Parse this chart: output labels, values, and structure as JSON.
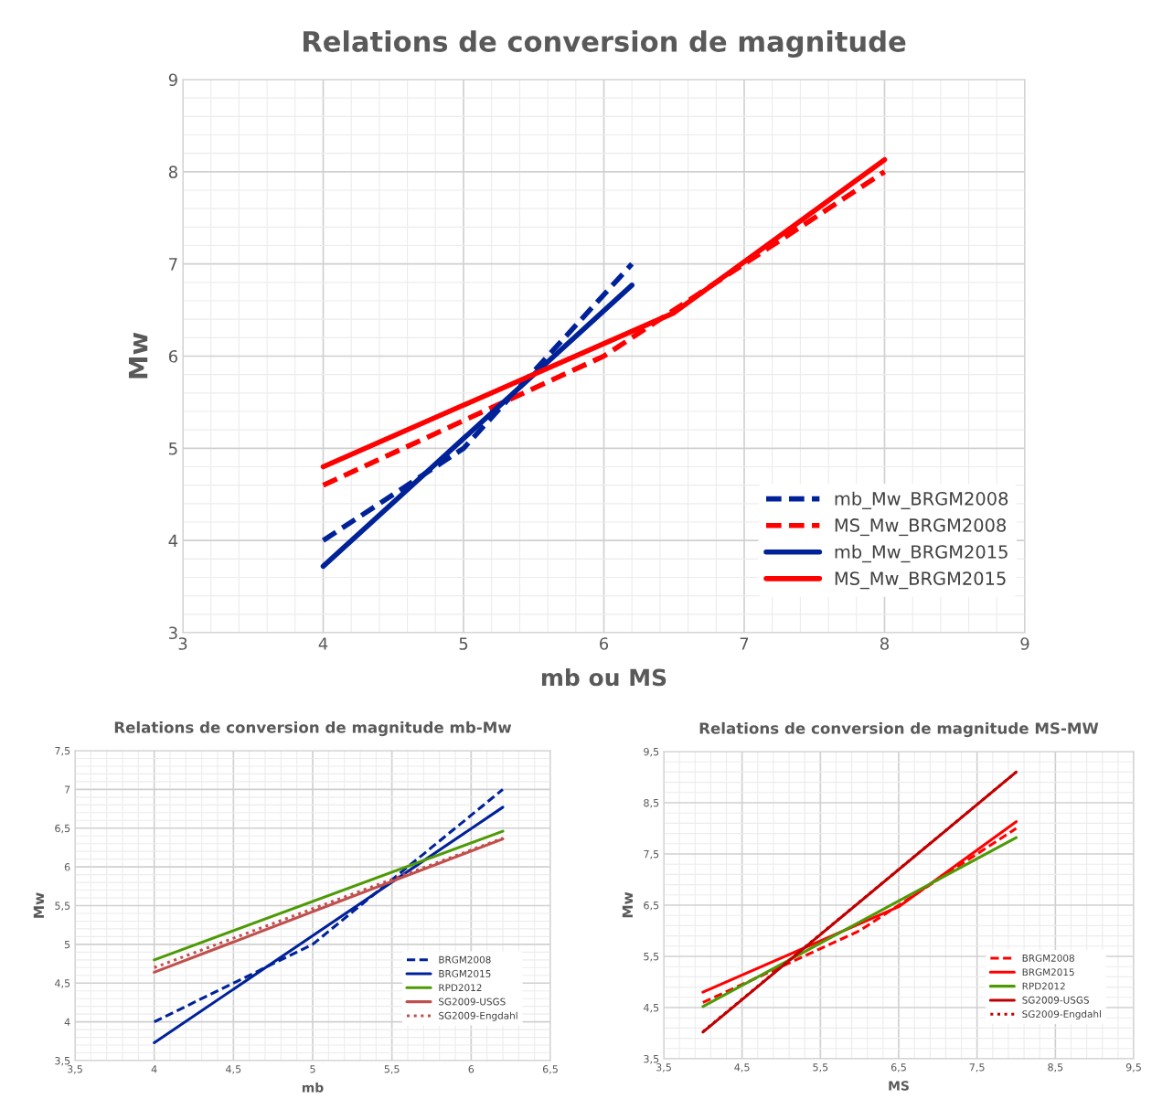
{
  "chart_data": [
    {
      "type": "line",
      "title": "Relations de conversion de magnitude",
      "xlabel": "mb ou MS",
      "ylabel": "Mw",
      "xlim": [
        3,
        9
      ],
      "ylim": [
        3,
        9
      ],
      "xticks": [
        3,
        4,
        5,
        6,
        7,
        8,
        9
      ],
      "yticks": [
        3,
        4,
        5,
        6,
        7,
        8,
        9
      ],
      "grid": true,
      "legend": "bottom right",
      "marker": "none",
      "series": [
        {
          "name": "mb_Mw_BRGM2008",
          "color": "#002299",
          "line_style": "dashed",
          "x": [
            4,
            5,
            6.2
          ],
          "values": [
            4,
            5,
            7.0
          ]
        },
        {
          "name": "MS_Mw_BRGM2008",
          "color": "#ff0000",
          "line_style": "dashed",
          "x": [
            4,
            6,
            8
          ],
          "values": [
            4.6,
            6.0,
            8.0
          ]
        },
        {
          "name": "mb_Mw_BRGM2015",
          "color": "#002299",
          "line_style": "solid",
          "x": [
            4,
            6.2
          ],
          "values": [
            3.72,
            6.77
          ]
        },
        {
          "name": "MS_Mw_BRGM2015",
          "color": "#ff0000",
          "line_style": "solid",
          "x": [
            4,
            6.5,
            8
          ],
          "values": [
            4.8,
            6.47,
            8.13
          ]
        }
      ]
    },
    {
      "type": "line",
      "title": "Relations de conversion de magnitude mb-Mw",
      "xlabel": "mb",
      "ylabel": "Mw",
      "xlim": [
        3.5,
        6.5
      ],
      "ylim": [
        3.5,
        7.5
      ],
      "xticks": [
        {
          "value": 3.5,
          "label": "3,5"
        },
        4,
        {
          "value": 4.5,
          "label": "4,5"
        },
        5,
        {
          "value": 5.5,
          "label": "5,5"
        },
        6,
        {
          "value": 6.5,
          "label": "6,5"
        }
      ],
      "yticks": [
        {
          "value": 3.5,
          "label": "3,5"
        },
        4,
        {
          "value": 4.5,
          "label": "4,5"
        },
        5,
        {
          "value": 5.5,
          "label": "5,5"
        },
        6,
        {
          "value": 6.5,
          "label": "6,5"
        },
        7,
        {
          "value": 7.5,
          "label": "7,5"
        }
      ],
      "grid": true,
      "legend": "bottom right",
      "marker": "none",
      "series": [
        {
          "name": "BRGM2008",
          "color": "#002299",
          "line_style": "dashed",
          "x": [
            4,
            5,
            6.2
          ],
          "values": [
            4,
            5,
            7.0
          ]
        },
        {
          "name": "BRGM2015",
          "color": "#002299",
          "line_style": "solid",
          "x": [
            4,
            6.2
          ],
          "values": [
            3.73,
            6.77
          ]
        },
        {
          "name": "RPD2012",
          "color": "#4e9a06",
          "line_style": "solid",
          "x": [
            4,
            6.2
          ],
          "values": [
            4.8,
            6.46
          ]
        },
        {
          "name": "SG2009-USGS",
          "color": "#c0504d",
          "line_style": "solid",
          "x": [
            4,
            6.2
          ],
          "values": [
            4.64,
            6.36
          ]
        },
        {
          "name": "SG2009-Engdahl",
          "color": "#c0504d",
          "line_style": "dotted",
          "x": [
            4,
            6.2
          ],
          "values": [
            4.7,
            6.37
          ]
        }
      ]
    },
    {
      "type": "line",
      "title": "Relations de conversion de magnitude MS-MW",
      "xlabel": "MS",
      "ylabel": "Mw",
      "xlim": [
        3.5,
        9.5
      ],
      "ylim": [
        3.5,
        9.5
      ],
      "xticks": [
        {
          "value": 3.5,
          "label": "3,5"
        },
        {
          "value": 4.5,
          "label": "4,5"
        },
        {
          "value": 5.5,
          "label": "5,5"
        },
        {
          "value": 6.5,
          "label": "6,5"
        },
        {
          "value": 7.5,
          "label": "7,5"
        },
        {
          "value": 8.5,
          "label": "8,5"
        },
        {
          "value": 9.5,
          "label": "9,5"
        }
      ],
      "yticks": [
        {
          "value": 3.5,
          "label": "3,5"
        },
        {
          "value": 4.5,
          "label": "4,5"
        },
        {
          "value": 5.5,
          "label": "5,5"
        },
        {
          "value": 6.5,
          "label": "6,5"
        },
        {
          "value": 7.5,
          "label": "7,5"
        },
        {
          "value": 8.5,
          "label": "8,5"
        },
        {
          "value": 9.5,
          "label": "9,5"
        }
      ],
      "grid": true,
      "legend": "bottom right",
      "marker": "none",
      "series": [
        {
          "name": "BRGM2008",
          "color": "#ff0000",
          "line_style": "dashed",
          "x": [
            4,
            6,
            8
          ],
          "values": [
            4.6,
            6.0,
            8.0
          ]
        },
        {
          "name": "BRGM2015",
          "color": "#ff0000",
          "line_style": "solid",
          "x": [
            4,
            6.5,
            8
          ],
          "values": [
            4.8,
            6.47,
            8.13
          ]
        },
        {
          "name": "RPD2012",
          "color": "#4e9a06",
          "line_style": "solid",
          "x": [
            4,
            8
          ],
          "values": [
            4.52,
            7.82
          ]
        },
        {
          "name": "SG2009-USGS",
          "color": "#c00000",
          "line_style": "solid",
          "x": [
            4,
            8
          ],
          "values": [
            4.02,
            9.1
          ]
        },
        {
          "name": "SG2009-Engdahl",
          "color": "#c00000",
          "line_style": "dotted",
          "x": [
            4,
            8
          ],
          "values": [
            4.03,
            9.1
          ]
        }
      ]
    }
  ]
}
